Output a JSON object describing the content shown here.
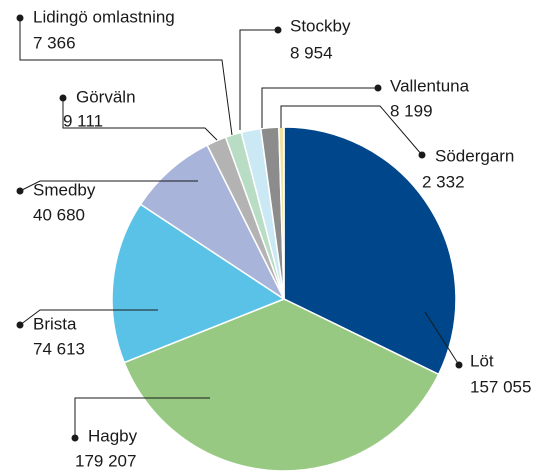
{
  "chart_data": {
    "type": "pie",
    "categories": [
      "Löt",
      "Hagby",
      "Brista",
      "Smedby",
      "Görväln",
      "Lidingö omlastning",
      "Stockby",
      "Vallentuna",
      "Södergarn"
    ],
    "values": [
      157055,
      179207,
      74613,
      40680,
      9111,
      7366,
      8954,
      8199,
      2332
    ],
    "value_labels": [
      "157 055",
      "179 207",
      "74 613",
      "40 680",
      "9 111",
      "7 366",
      "8 954",
      "8 199",
      "2 332"
    ],
    "colors": [
      "#00468b",
      "#97c982",
      "#5bc2e7",
      "#a8b4da",
      "#b3b3b3",
      "#b9dcc4",
      "#cbe9f5",
      "#8c8c8c",
      "#efe3a0"
    ]
  }
}
